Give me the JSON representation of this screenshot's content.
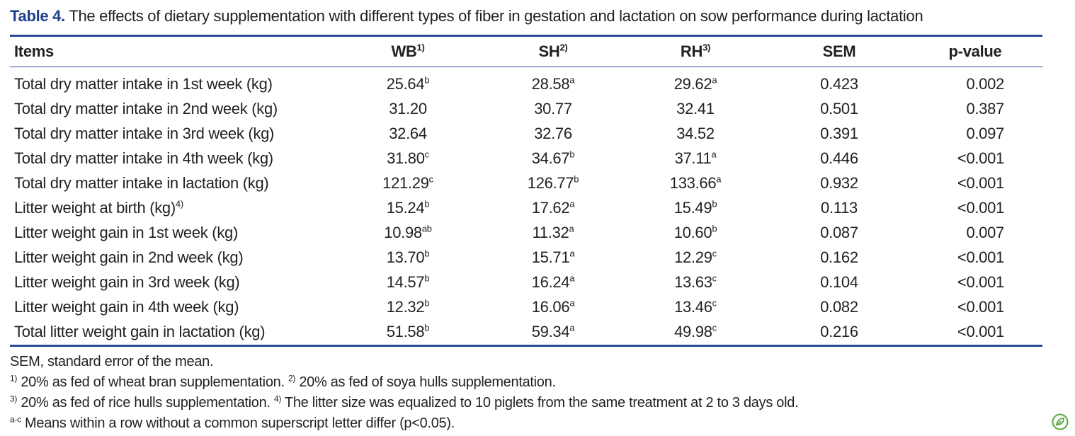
{
  "caption": {
    "label": "Table 4.",
    "text": "The effects of dietary supplementation with different types of fiber in gestation and lactation on sow performance during lactation"
  },
  "table": {
    "headers": [
      {
        "text": "Items",
        "sup": ""
      },
      {
        "text": "WB",
        "sup": "1)"
      },
      {
        "text": "SH",
        "sup": "2)"
      },
      {
        "text": "RH",
        "sup": "3)"
      },
      {
        "text": "SEM",
        "sup": ""
      },
      {
        "text": "p-value",
        "sup": ""
      }
    ],
    "rows": [
      {
        "item": "Total dry matter intake in 1st week (kg)",
        "item_sup": "",
        "wb": "25.64",
        "wb_sup": "b",
        "sh": "28.58",
        "sh_sup": "a",
        "rh": "29.62",
        "rh_sup": "a",
        "sem": "0.423",
        "p": "0.002"
      },
      {
        "item": "Total dry matter intake in 2nd week (kg)",
        "item_sup": "",
        "wb": "31.20",
        "wb_sup": "",
        "sh": "30.77",
        "sh_sup": "",
        "rh": "32.41",
        "rh_sup": "",
        "sem": "0.501",
        "p": "0.387"
      },
      {
        "item": "Total dry matter intake in 3rd week (kg)",
        "item_sup": "",
        "wb": "32.64",
        "wb_sup": "",
        "sh": "32.76",
        "sh_sup": "",
        "rh": "34.52",
        "rh_sup": "",
        "sem": "0.391",
        "p": "0.097"
      },
      {
        "item": "Total dry matter intake in 4th week (kg)",
        "item_sup": "",
        "wb": "31.80",
        "wb_sup": "c",
        "sh": "34.67",
        "sh_sup": "b",
        "rh": "37.11",
        "rh_sup": "a",
        "sem": "0.446",
        "p": "<0.001"
      },
      {
        "item": "Total dry matter intake in lactation (kg)",
        "item_sup": "",
        "wb": "121.29",
        "wb_sup": "c",
        "sh": "126.77",
        "sh_sup": "b",
        "rh": "133.66",
        "rh_sup": "a",
        "sem": "0.932",
        "p": "<0.001"
      },
      {
        "item": "Litter weight at birth (kg)",
        "item_sup": "4)",
        "wb": "15.24",
        "wb_sup": "b",
        "sh": "17.62",
        "sh_sup": "a",
        "rh": "15.49",
        "rh_sup": "b",
        "sem": "0.113",
        "p": "<0.001"
      },
      {
        "item": "Litter weight gain in 1st week (kg)",
        "item_sup": "",
        "wb": "10.98",
        "wb_sup": "ab",
        "sh": "11.32",
        "sh_sup": "a",
        "rh": "10.60",
        "rh_sup": "b",
        "sem": "0.087",
        "p": "0.007"
      },
      {
        "item": "Litter weight gain in 2nd week (kg)",
        "item_sup": "",
        "wb": "13.70",
        "wb_sup": "b",
        "sh": "15.71",
        "sh_sup": "a",
        "rh": "12.29",
        "rh_sup": "c",
        "sem": "0.162",
        "p": "<0.001"
      },
      {
        "item": "Litter weight gain in 3rd week (kg)",
        "item_sup": "",
        "wb": "14.57",
        "wb_sup": "b",
        "sh": "16.24",
        "sh_sup": "a",
        "rh": "13.63",
        "rh_sup": "c",
        "sem": "0.104",
        "p": "<0.001"
      },
      {
        "item": "Litter weight gain in 4th week (kg)",
        "item_sup": "",
        "wb": "12.32",
        "wb_sup": "b",
        "sh": "16.06",
        "sh_sup": "a",
        "rh": "13.46",
        "rh_sup": "c",
        "sem": "0.082",
        "p": "<0.001"
      },
      {
        "item": "Total litter weight gain in lactation (kg)",
        "item_sup": "",
        "wb": "51.58",
        "wb_sup": "b",
        "sh": "59.34",
        "sh_sup": "a",
        "rh": "49.98",
        "rh_sup": "c",
        "sem": "0.216",
        "p": "<0.001"
      }
    ]
  },
  "footnotes": {
    "sem": "SEM, standard error of the mean.",
    "n1_mark": "1)",
    "n1_text": " 20% as fed of wheat bran supplementation. ",
    "n2_mark": "2)",
    "n2_text": " 20% as fed of soya hulls supplementation.",
    "n3_mark": "3)",
    "n3_text": " 20% as fed of rice hulls supplementation. ",
    "n4_mark": "4)",
    "n4_text": " The litter size was equalized to 10 piglets from the same treatment at 2 to 3 days old.",
    "ac_mark": "a-c",
    "ac_text": " Means within a row without a common superscript letter differ (p<0.05)."
  },
  "colors": {
    "accent": "#2b4a9a",
    "caption_label": "#1f3f8f",
    "logo": "#5aa63c"
  },
  "logo_icon": "open-access-leaf-icon"
}
